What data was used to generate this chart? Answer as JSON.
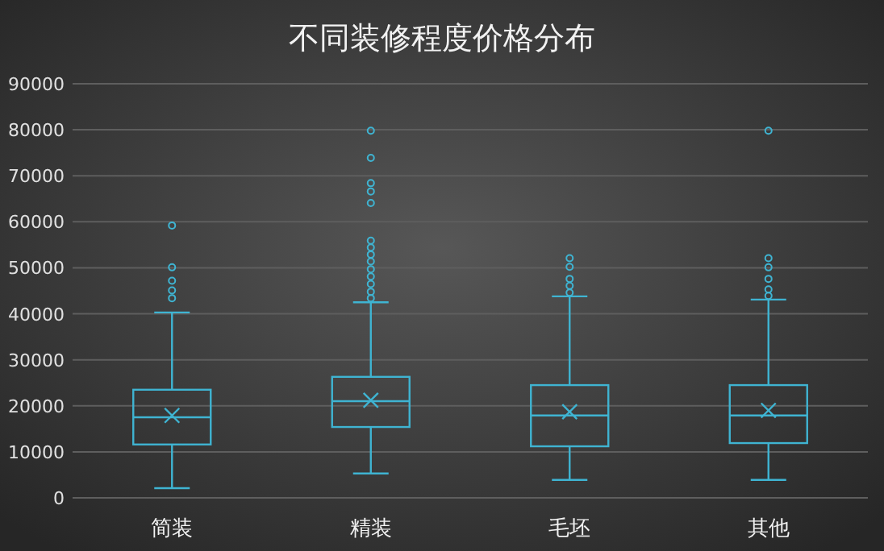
{
  "chart_data": {
    "type": "box",
    "title": "不同装修程度价格分布",
    "categories": [
      "简装",
      "精装",
      "毛坯",
      "其他"
    ],
    "color": "#3fb4d2",
    "ylim": [
      0,
      90000
    ],
    "yticks": [
      0,
      10000,
      20000,
      30000,
      40000,
      50000,
      60000,
      70000,
      80000,
      90000
    ],
    "grid": "y",
    "boxes": [
      {
        "low": 2100,
        "q1": 11600,
        "median": 17500,
        "q3": 23500,
        "high": 40300,
        "mean": 17900,
        "outliers": [
          43400,
          45100,
          47200,
          50100,
          59200
        ]
      },
      {
        "low": 5300,
        "q1": 15400,
        "median": 21000,
        "q3": 26300,
        "high": 42500,
        "mean": 21200,
        "outliers": [
          43400,
          44800,
          46500,
          48100,
          49700,
          51400,
          52900,
          54400,
          55900,
          64100,
          66600,
          68400,
          73900,
          79800
        ]
      },
      {
        "low": 3900,
        "q1": 11200,
        "median": 17900,
        "q3": 24500,
        "high": 43800,
        "mean": 18700,
        "outliers": [
          44600,
          46100,
          47600,
          50200,
          52100
        ]
      },
      {
        "low": 3900,
        "q1": 11900,
        "median": 17900,
        "q3": 24500,
        "high": 43100,
        "mean": 19000,
        "outliers": [
          43900,
          45300,
          47600,
          50100,
          52100,
          79800
        ]
      }
    ]
  }
}
